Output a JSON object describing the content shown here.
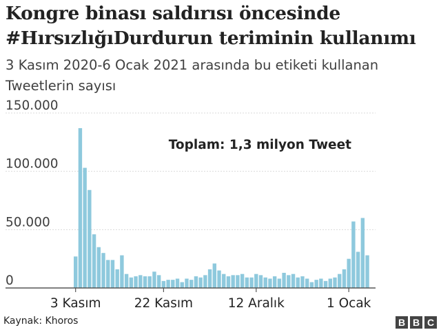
{
  "title": "Kongre binası saldırısı öncesinde #HırsızlığıDurdurun teriminin kullanımı",
  "subtitle": "3 Kasım 2020-6 Ocak 2021 arasında bu etiketi kullanan Tweetlerin sayısı",
  "source": "Kaynak: Khoros",
  "logo": [
    "B",
    "B",
    "C"
  ],
  "colors": {
    "bar": "#8ec9dd",
    "grid": "#d9d9d9",
    "axis": "#555555",
    "text": "#222222"
  },
  "chart_data": {
    "type": "bar",
    "title": "Kongre binası saldırısı öncesinde #HırsızlığıDurdurun teriminin kullanımı",
    "subtitle": "3 Kasım 2020-6 Ocak 2021 arasında bu etiketi kullanan Tweetlerin sayısı",
    "annotation": "Toplam: 1,3 milyon Tweet",
    "ylim": [
      0,
      150000
    ],
    "yticks": [
      0,
      50000,
      100000,
      150000
    ],
    "ytick_labels": [
      "0",
      "50.000",
      "100.000",
      "150.000"
    ],
    "xtick_labels": [
      {
        "label": "3 Kasım",
        "date": "2020-11-03"
      },
      {
        "label": "22 Kasım",
        "date": "2020-11-22"
      },
      {
        "label": "12 Aralık",
        "date": "2020-12-12"
      },
      {
        "label": "1 Ocak",
        "date": "2021-01-01"
      }
    ],
    "grid": true,
    "dates": [
      "2020-11-03",
      "2020-11-04",
      "2020-11-05",
      "2020-11-06",
      "2020-11-07",
      "2020-11-08",
      "2020-11-09",
      "2020-11-10",
      "2020-11-11",
      "2020-11-12",
      "2020-11-13",
      "2020-11-14",
      "2020-11-15",
      "2020-11-16",
      "2020-11-17",
      "2020-11-18",
      "2020-11-19",
      "2020-11-20",
      "2020-11-21",
      "2020-11-22",
      "2020-11-23",
      "2020-11-24",
      "2020-11-25",
      "2020-11-26",
      "2020-11-27",
      "2020-11-28",
      "2020-11-29",
      "2020-11-30",
      "2020-12-01",
      "2020-12-02",
      "2020-12-03",
      "2020-12-04",
      "2020-12-05",
      "2020-12-06",
      "2020-12-07",
      "2020-12-08",
      "2020-12-09",
      "2020-12-10",
      "2020-12-11",
      "2020-12-12",
      "2020-12-13",
      "2020-12-14",
      "2020-12-15",
      "2020-12-16",
      "2020-12-17",
      "2020-12-18",
      "2020-12-19",
      "2020-12-20",
      "2020-12-21",
      "2020-12-22",
      "2020-12-23",
      "2020-12-24",
      "2020-12-25",
      "2020-12-26",
      "2020-12-27",
      "2020-12-28",
      "2020-12-29",
      "2020-12-30",
      "2020-12-31",
      "2021-01-01",
      "2021-01-02",
      "2021-01-03",
      "2021-01-04",
      "2021-01-05",
      "2021-01-06"
    ],
    "values": [
      27000,
      137000,
      103000,
      84000,
      46000,
      35000,
      30000,
      24000,
      24000,
      16000,
      28000,
      12000,
      9000,
      10000,
      11000,
      10000,
      10000,
      14000,
      11000,
      6000,
      7000,
      7000,
      8000,
      5000,
      8000,
      7000,
      10000,
      9000,
      11000,
      16000,
      21000,
      15000,
      12000,
      10000,
      11000,
      11000,
      12000,
      9000,
      9000,
      12000,
      11000,
      9000,
      8000,
      10000,
      8000,
      13000,
      11000,
      12000,
      9000,
      10000,
      8000,
      5000,
      7000,
      8000,
      6000,
      8000,
      9000,
      12000,
      16000,
      25000,
      57000,
      31000,
      60000,
      28000,
      0
    ]
  }
}
